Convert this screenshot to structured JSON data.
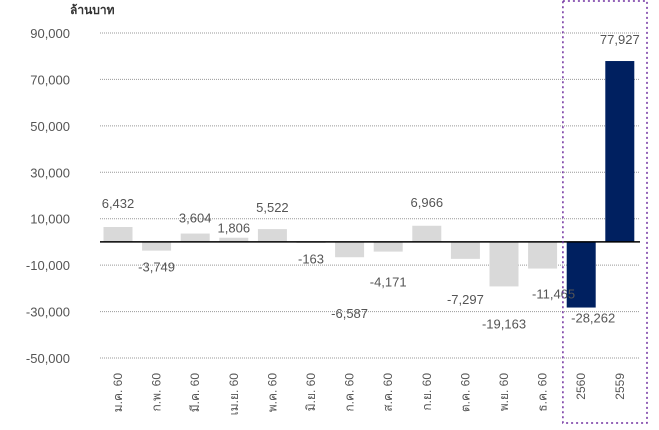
{
  "chart_data": {
    "type": "bar",
    "unit_label": "ล้านบาท",
    "categories": [
      "ม.ค. 60",
      "ก.พ. 60",
      "มี.ค. 60",
      "เม.ย. 60",
      "พ.ค. 60",
      "มิ.ย. 60",
      "ก.ค. 60",
      "ส.ค. 60",
      "ก.ย. 60",
      "ต.ค. 60",
      "พ.ย. 60",
      "ธ.ค. 60",
      "2560",
      "2559"
    ],
    "values": [
      6432,
      -3749,
      3604,
      1806,
      5522,
      -163,
      -6587,
      -4171,
      6966,
      -7297,
      -19163,
      -11465,
      -28262,
      77927
    ],
    "value_labels": [
      "6,432",
      "-3,749",
      "3,604",
      "1,806",
      "5,522",
      "-163",
      "-6,587",
      "-4,171",
      "6,966",
      "-7,297",
      "-19,163",
      "-11,465",
      "-28,262",
      "77,927"
    ],
    "yticks": [
      90000,
      70000,
      50000,
      30000,
      10000,
      -10000,
      -30000,
      -50000
    ],
    "ytick_labels": [
      "90,000",
      "70,000",
      "50,000",
      "30,000",
      "10,000",
      "-10,000",
      "-30,000",
      "-50,000"
    ],
    "ylim": [
      -50000,
      90000
    ],
    "grid": "horizontal dotted",
    "highlight_group": [
      "2560",
      "2559"
    ],
    "colors": {
      "monthly_bar": "#d9d9d9",
      "annual_bar": "#002060",
      "highlight_box": "#7030a0",
      "zero_line": "#000000",
      "grid": "#999999"
    }
  }
}
